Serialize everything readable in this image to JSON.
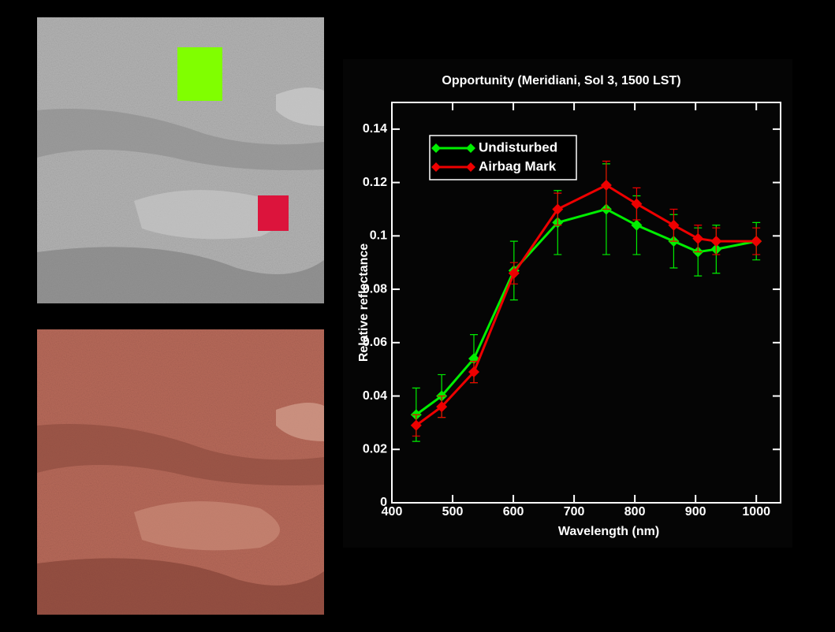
{
  "chart_data": {
    "type": "line",
    "title": "Opportunity (Meridiani, Sol 3, 1500 LST)",
    "x_label": "Wavelength (nm)",
    "y_label": "Relative reflectance",
    "x": [
      440,
      482,
      535,
      601,
      673,
      753,
      803,
      864,
      904,
      934,
      1000
    ],
    "series": [
      {
        "name": "Undisturbed",
        "color": "#00ee00",
        "values": [
          0.033,
          0.04,
          0.054,
          0.087,
          0.105,
          0.11,
          0.104,
          0.098,
          0.094,
          0.095,
          0.098
        ],
        "errors": [
          0.01,
          0.008,
          0.009,
          0.011,
          0.012,
          0.017,
          0.011,
          0.01,
          0.009,
          0.009,
          0.007
        ]
      },
      {
        "name": "Airbag Mark",
        "color": "#ee0000",
        "values": [
          0.029,
          0.036,
          0.049,
          0.086,
          0.11,
          0.119,
          0.112,
          0.104,
          0.099,
          0.098,
          0.098
        ],
        "errors": [
          0.004,
          0.004,
          0.004,
          0.004,
          0.006,
          0.009,
          0.006,
          0.006,
          0.005,
          0.005,
          0.005
        ]
      }
    ],
    "xlim": [
      400,
      1040
    ],
    "xticks": [
      400,
      500,
      600,
      700,
      800,
      900,
      1000
    ],
    "ylim": [
      0,
      0.15
    ],
    "yticks": [
      0,
      0.02,
      0.04,
      0.06,
      0.08,
      0.1,
      0.12,
      0.14
    ],
    "legend": "upper-left"
  }
}
